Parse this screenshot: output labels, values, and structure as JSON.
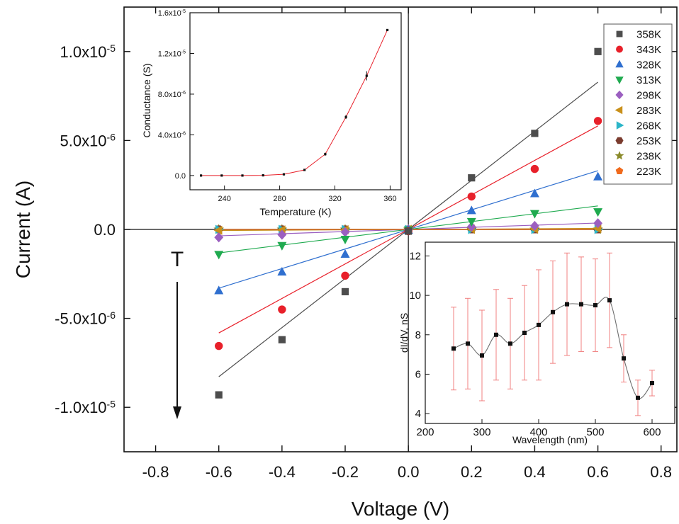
{
  "chart_data": [
    {
      "id": "main",
      "type": "scatter",
      "title": "",
      "xlabel": "Voltage (V)",
      "ylabel": "Current (A)",
      "xlim": [
        -0.9,
        0.85
      ],
      "ylim": [
        -1.25e-05,
        1.25e-05
      ],
      "xticks": [
        -0.8,
        -0.6,
        -0.4,
        -0.2,
        0.0,
        0.2,
        0.4,
        0.6,
        0.8
      ],
      "xtick_labels": [
        "-0.8",
        "-0.6",
        "-0.4",
        "-0.2",
        "0.0",
        "0.2",
        "0.4",
        "0.6",
        "0.8"
      ],
      "yticks": [
        -1e-05,
        -5e-06,
        0,
        5e-06,
        1e-05
      ],
      "ytick_labels": [
        {
          "base": "-1.0x10",
          "exp": "-5"
        },
        {
          "base": "-5.0x10",
          "exp": "-6"
        },
        {
          "base": "0.0",
          "exp": ""
        },
        {
          "base": "5.0x10",
          "exp": "-6"
        },
        {
          "base": "1.0x10",
          "exp": "-5"
        }
      ],
      "annotation": "T",
      "legend_position": "top-right",
      "x": [
        -0.6,
        -0.4,
        -0.2,
        0.0,
        0.2,
        0.4,
        0.6
      ],
      "series": [
        {
          "name": "358K",
          "color": "#4d4d4d",
          "marker": "square",
          "fit_slope": 1.38e-05,
          "values": [
            -9.3e-06,
            -6.2e-06,
            -3.5e-06,
            -1e-07,
            2.9e-06,
            5.4e-06,
            1e-05
          ]
        },
        {
          "name": "343K",
          "color": "#e8202a",
          "marker": "circle",
          "fit_slope": 9.7e-06,
          "values": [
            -6.55e-06,
            -4.5e-06,
            -2.6e-06,
            -1e-07,
            1.85e-06,
            3.4e-06,
            6.1e-06
          ]
        },
        {
          "name": "328K",
          "color": "#2f6fcf",
          "marker": "triangle-up",
          "fit_slope": 5.5e-06,
          "values": [
            -3.45e-06,
            -2.4e-06,
            -1.4e-06,
            -5e-08,
            1.05e-06,
            2e-06,
            2.95e-06
          ]
        },
        {
          "name": "313K",
          "color": "#1faa4f",
          "marker": "triangle-down",
          "fit_slope": 2.2e-06,
          "values": [
            -1.4e-06,
            -9e-07,
            -5.5e-07,
            -2e-08,
            4.5e-07,
            9e-07,
            1e-06
          ]
        },
        {
          "name": "298K",
          "color": "#9b5fc0",
          "marker": "diamond",
          "fit_slope": 6e-07,
          "values": [
            -4.5e-07,
            -3e-07,
            -1.5e-07,
            0.0,
            1.5e-07,
            2e-07,
            3.5e-07
          ]
        },
        {
          "name": "283K",
          "color": "#c9901a",
          "marker": "triangle-left",
          "fit_slope": 1e-07,
          "values": [
            -5e-08,
            -3e-08,
            -2e-08,
            0.0,
            2e-08,
            3e-08,
            5e-08
          ]
        },
        {
          "name": "268K",
          "color": "#2bb5c8",
          "marker": "triangle-right",
          "fit_slope": 0.0,
          "values": [
            0.0,
            0.0,
            0.0,
            0.0,
            0.0,
            0.0,
            0.0
          ]
        },
        {
          "name": "253K",
          "color": "#7a3b2e",
          "marker": "hexagon",
          "fit_slope": 0.0,
          "values": [
            0.0,
            0.0,
            0.0,
            0.0,
            0.0,
            0.0,
            0.0
          ]
        },
        {
          "name": "238K",
          "color": "#8a8a2a",
          "marker": "star",
          "fit_slope": 0.0,
          "values": [
            0.0,
            0.0,
            0.0,
            0.0,
            0.0,
            0.0,
            0.0
          ]
        },
        {
          "name": "223K",
          "color": "#f06a1c",
          "marker": "pentagon",
          "fit_slope": 0.0,
          "values": [
            0.0,
            0.0,
            0.0,
            0.0,
            0.0,
            0.0,
            0.0
          ]
        }
      ]
    },
    {
      "id": "inset_conductance",
      "type": "line",
      "title": "",
      "xlabel": "Temperature (K)",
      "ylabel": "Conductance (S)",
      "xlim": [
        215,
        368
      ],
      "ylim": [
        -1.4e-06,
        1.6e-05
      ],
      "xticks": [
        240,
        280,
        320,
        360
      ],
      "xtick_labels": [
        "240",
        "280",
        "320",
        "360"
      ],
      "yticks": [
        0,
        4e-06,
        8e-06,
        1.2e-05,
        1.6e-05
      ],
      "ytick_labels": [
        {
          "base": "0.0",
          "exp": ""
        },
        {
          "base": "4.0x10",
          "exp": "-6"
        },
        {
          "base": "8.0x10",
          "exp": "-6"
        },
        {
          "base": "1.2x10",
          "exp": "-5"
        },
        {
          "base": "1.6x10",
          "exp": "-5"
        }
      ],
      "x": [
        223,
        238,
        253,
        268,
        283,
        298,
        313,
        328,
        343,
        358
      ],
      "y": [
        0.0,
        0.0,
        0.0,
        2e-08,
        1.2e-07,
        5.5e-07,
        2.1e-06,
        5.75e-06,
        9.8e-06,
        1.43e-05
      ],
      "yerr": [
        0,
        0,
        0,
        0,
        5e-08,
        1e-07,
        1.5e-07,
        2e-07,
        4.5e-07,
        1e-07
      ],
      "line_color": "#e8202a",
      "marker_color": "#111111"
    },
    {
      "id": "inset_spectrum",
      "type": "line",
      "title": "",
      "xlabel": "Wavelength (nm)",
      "ylabel": "dI/dV, nS",
      "xlim": [
        200,
        640
      ],
      "ylim": [
        3.5,
        12.7
      ],
      "xticks": [
        200,
        300,
        400,
        500,
        600
      ],
      "xtick_labels": [
        "200",
        "300",
        "400",
        "500",
        "600"
      ],
      "yticks": [
        4,
        6,
        8,
        10,
        12
      ],
      "ytick_labels": [
        "4",
        "6",
        "8",
        "10",
        "12"
      ],
      "x": [
        250,
        275,
        300,
        325,
        350,
        375,
        400,
        425,
        450,
        475,
        500,
        525,
        550,
        575,
        600
      ],
      "y": [
        7.3,
        7.55,
        6.95,
        8.0,
        7.55,
        8.1,
        8.5,
        9.15,
        9.55,
        9.55,
        9.5,
        9.75,
        6.8,
        4.8,
        5.55
      ],
      "yerr": [
        2.1,
        2.3,
        2.3,
        2.3,
        2.3,
        2.4,
        2.8,
        2.6,
        2.6,
        2.4,
        2.35,
        2.4,
        1.2,
        0.9,
        0.65
      ],
      "line_color": "#6e6e6e",
      "errbar_color": "#f08080",
      "marker_color": "#111111"
    }
  ]
}
